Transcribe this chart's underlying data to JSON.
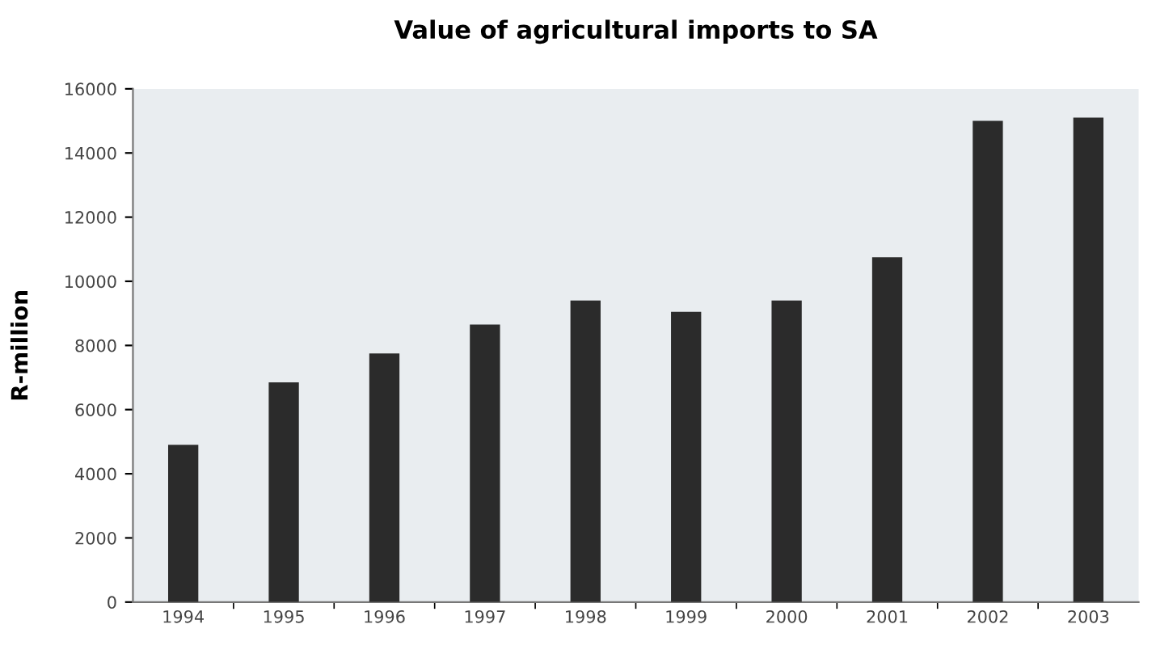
{
  "chart_data": {
    "type": "bar",
    "title": "Value of agricultural imports to SA",
    "ylabel": "R-million",
    "categories": [
      "1994",
      "1995",
      "1996",
      "1997",
      "1998",
      "1999",
      "2000",
      "2001",
      "2002",
      "2003"
    ],
    "values": [
      4900,
      6850,
      7750,
      8650,
      9400,
      9050,
      9400,
      10750,
      15000,
      15100
    ],
    "color": "#2b2b2b",
    "ylim": [
      0,
      16000
    ],
    "yticks": [
      0,
      2000,
      4000,
      6000,
      8000,
      10000,
      12000,
      14000,
      16000
    ],
    "grid": false
  }
}
